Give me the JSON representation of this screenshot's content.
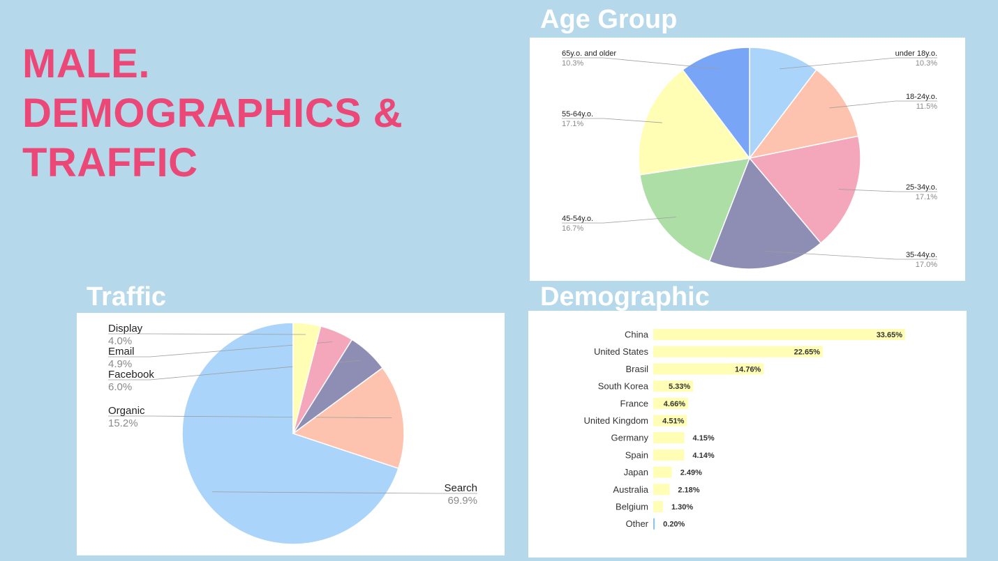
{
  "page": {
    "title_lines": [
      "MALE.",
      "DEMOGRAPHICS &",
      "TRAFFIC"
    ]
  },
  "chart_data": [
    {
      "id": "age",
      "type": "pie",
      "title": "Age Group",
      "slices": [
        {
          "label": "under 18y.o.",
          "pct_label": "10.3%",
          "value": 10.3,
          "color": "#aad4fa"
        },
        {
          "label": "18-24y.o.",
          "pct_label": "11.5%",
          "value": 11.5,
          "color": "#fec3ae"
        },
        {
          "label": "25-34y.o.",
          "pct_label": "17.1%",
          "value": 17.1,
          "color": "#f4a7ba"
        },
        {
          "label": "35-44y.o.",
          "pct_label": "17.0%",
          "value": 17.0,
          "color": "#8e8db4"
        },
        {
          "label": "45-54y.o.",
          "pct_label": "16.7%",
          "value": 16.7,
          "color": "#acdea6"
        },
        {
          "label": "55-64y.o.",
          "pct_label": "17.1%",
          "value": 17.1,
          "color": "#fffeb4"
        },
        {
          "label": "65y.o. and older",
          "pct_label": "10.3%",
          "value": 10.3,
          "color": "#78a5f6"
        }
      ]
    },
    {
      "id": "traffic",
      "type": "pie",
      "title": "Traffic",
      "slices": [
        {
          "label": "Search",
          "pct_label": "69.9%",
          "value": 69.9,
          "color": "#aad4fa"
        },
        {
          "label": "Organic",
          "pct_label": "15.2%",
          "value": 15.2,
          "color": "#fec3ae"
        },
        {
          "label": "Facebook",
          "pct_label": "6.0%",
          "value": 6.0,
          "color": "#8e8db4"
        },
        {
          "label": "Email",
          "pct_label": "4.9%",
          "value": 4.9,
          "color": "#f4a7ba"
        },
        {
          "label": "Display",
          "pct_label": "4.0%",
          "value": 4.0,
          "color": "#fffeb4"
        }
      ]
    },
    {
      "id": "demographic",
      "type": "bar",
      "orientation": "horizontal",
      "title": "Demographic",
      "bar_color": "#fffeb4",
      "other_color": "#8fc3ea",
      "categories": [
        "China",
        "United States",
        "Brasil",
        "South Korea",
        "France",
        "United Kingdom",
        "Germany",
        "Spain",
        "Japan",
        "Australia",
        "Belgium",
        "Other"
      ],
      "values": [
        33.65,
        22.65,
        14.76,
        5.33,
        4.66,
        4.51,
        4.15,
        4.14,
        2.49,
        2.18,
        1.3,
        0.2
      ],
      "value_labels": [
        "33.65%",
        "22.65%",
        "14.76%",
        "5.33%",
        "4.66%",
        "4.51%",
        "4.15%",
        "4.14%",
        "2.49%",
        "2.18%",
        "1.30%",
        "0.20%"
      ]
    }
  ]
}
